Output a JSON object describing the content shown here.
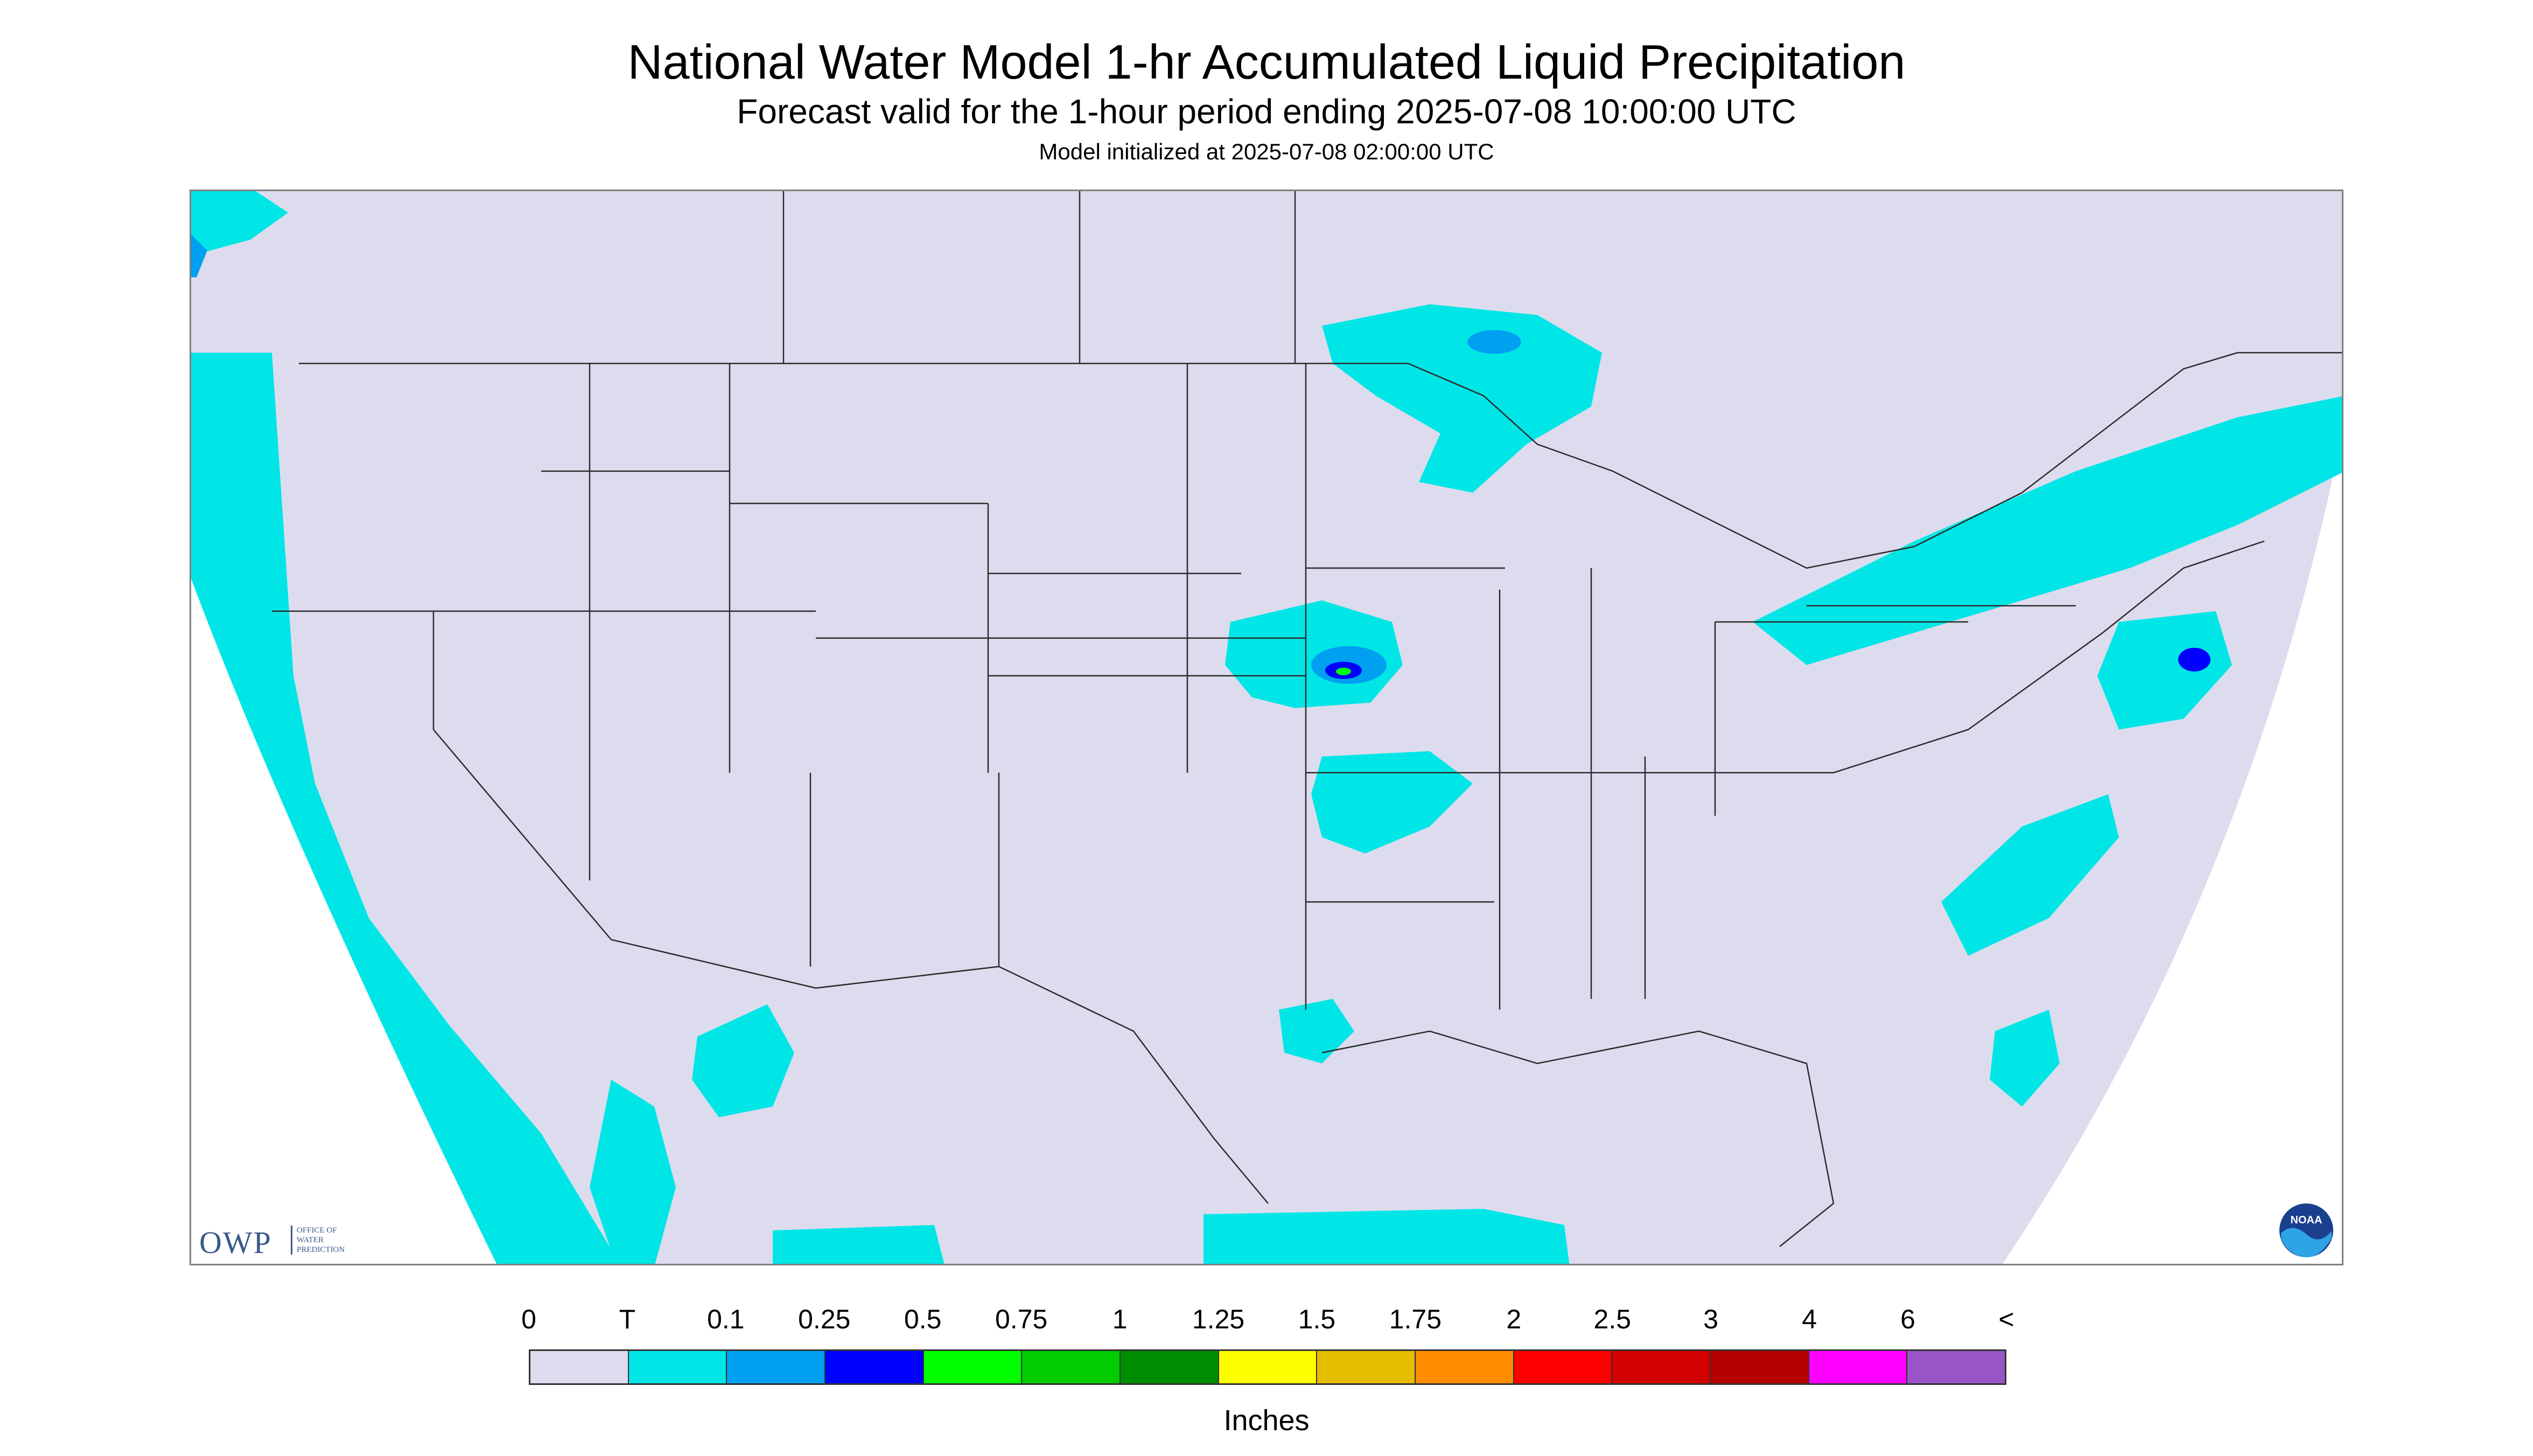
{
  "title": "National Water Model 1-hr Accumulated Liquid Precipitation",
  "subtitle": "Forecast valid for the 1-hour period ending 2025-07-08 10:00:00 UTC",
  "init_text": "Model initialized at 2025-07-08 02:00:00 UTC",
  "logo_owp": {
    "big": "OWP",
    "small_1": "OFFICE OF",
    "small_2": "WATER",
    "small_3": "PREDICTION"
  },
  "logo_noaa": {
    "text": "NOAA"
  },
  "map": {
    "background_color": "#dcdcee",
    "outside_domain_color": "#ffffff",
    "border_color": "#2b2b2b"
  },
  "legend": {
    "tick_labels": [
      "0",
      "T",
      "0.1",
      "0.25",
      "0.5",
      "0.75",
      "1",
      "1.25",
      "1.5",
      "1.75",
      "2",
      "2.5",
      "3",
      "4",
      "6",
      "<"
    ],
    "colors": [
      "#dcdcee",
      "#00e6e6",
      "#00a0f0",
      "#0000ff",
      "#00ff00",
      "#00cc00",
      "#008c00",
      "#ffff00",
      "#e6be00",
      "#ff8c00",
      "#ff0000",
      "#d20000",
      "#b40000",
      "#ff00ff",
      "#9955c8"
    ],
    "units": "Inches"
  }
}
